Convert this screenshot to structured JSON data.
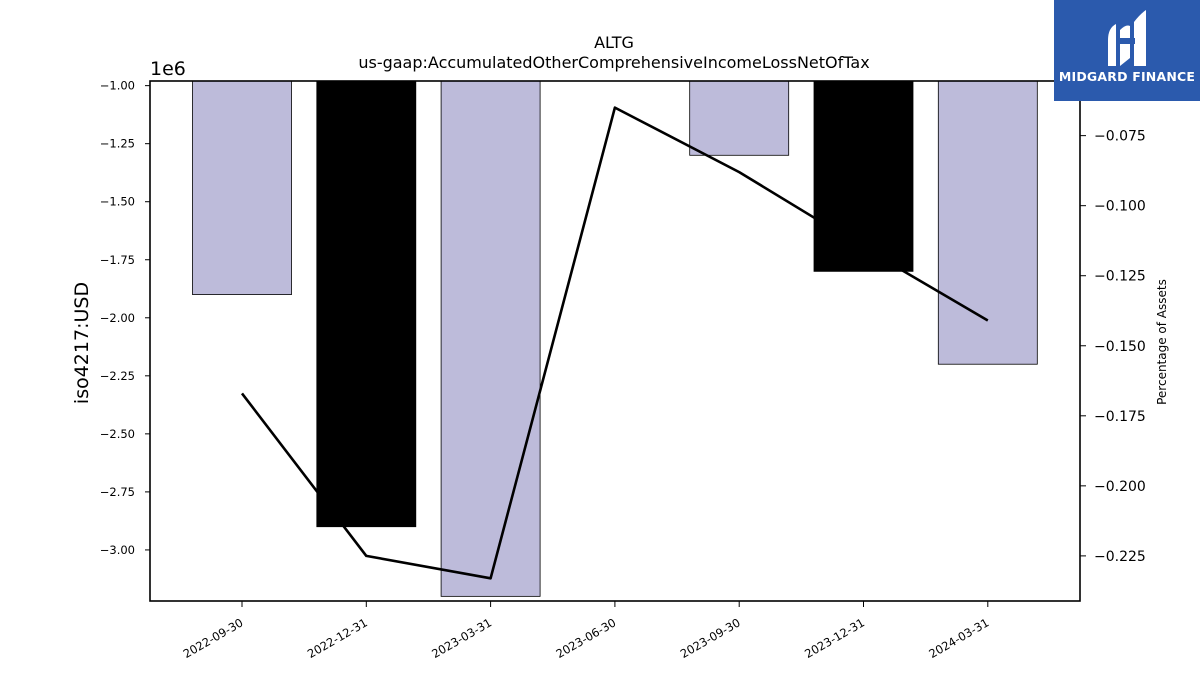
{
  "chart_data": {
    "type": "bar",
    "title": "ALTG",
    "subtitle": "us-gaap:AccumulatedOtherComprehensiveIncomeLossNetOfTax",
    "ylabel": "iso4217:USD",
    "y2label": "Percentage of Assets",
    "offset_text": "1e6",
    "categories": [
      "2022-09-30",
      "2022-12-31",
      "2023-03-31",
      "2023-06-30",
      "2023-09-30",
      "2023-12-31",
      "2024-03-31"
    ],
    "bars": [
      -1.9,
      -2.9,
      -3.2,
      null,
      -1.3,
      -1.8,
      -2.2
    ],
    "bar_colors": [
      "#bdbbda",
      "#000000",
      "#bdbbda",
      null,
      "#bdbbda",
      "#000000",
      "#bdbbda"
    ],
    "line_series": [
      -0.167,
      -0.225,
      -0.233,
      -0.065,
      -0.088,
      -0.115,
      -0.141
    ],
    "ylim": [
      -3.22,
      -0.98
    ],
    "y2lim": [
      -0.2411,
      -0.0555
    ],
    "yticks": [
      "−1.00",
      "−1.25",
      "−1.50",
      "−1.75",
      "−2.00",
      "−2.25",
      "−2.50",
      "−2.75",
      "−3.00"
    ],
    "ytick_values": [
      -1.0,
      -1.25,
      -1.5,
      -1.75,
      -2.0,
      -2.25,
      -2.5,
      -2.75,
      -3.0
    ],
    "y2ticks": [
      "−0.075",
      "−0.100",
      "−0.125",
      "−0.150",
      "−0.175",
      "−0.200",
      "−0.225"
    ],
    "y2tick_values": [
      -0.075,
      -0.1,
      -0.125,
      -0.15,
      -0.175,
      -0.2,
      -0.225
    ],
    "grid": false,
    "legend": "none"
  },
  "logo": {
    "text": "MIDGARD FINANCE",
    "colors": {
      "background": "#2b5aad",
      "foreground": "#ffffff"
    }
  }
}
